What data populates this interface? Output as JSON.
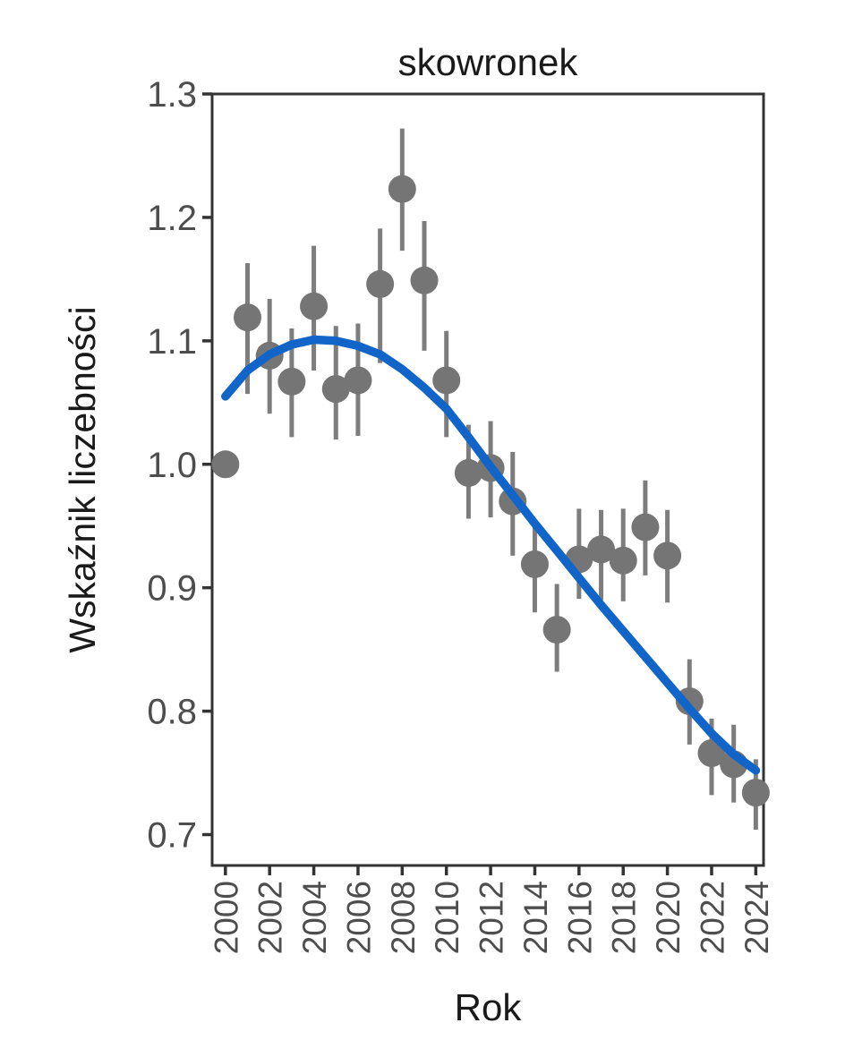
{
  "chart_data": {
    "type": "scatter",
    "title": "skowronek",
    "xlabel": "Rok",
    "ylabel": "Wskaźnik liczebności",
    "grid": false,
    "legend": "none",
    "xlim": [
      1999.4,
      2024.35
    ],
    "ylim": [
      0.675,
      1.3
    ],
    "x_ticks": [
      {
        "v": 2000,
        "label": "2000"
      },
      {
        "v": 2002,
        "label": "2002"
      },
      {
        "v": 2004,
        "label": "2004"
      },
      {
        "v": 2006,
        "label": "2006"
      },
      {
        "v": 2008,
        "label": "2008"
      },
      {
        "v": 2010,
        "label": "2010"
      },
      {
        "v": 2012,
        "label": "2012"
      },
      {
        "v": 2014,
        "label": "2014"
      },
      {
        "v": 2016,
        "label": "2016"
      },
      {
        "v": 2018,
        "label": "2018"
      },
      {
        "v": 2020,
        "label": "2020"
      },
      {
        "v": 2022,
        "label": "2022"
      },
      {
        "v": 2024,
        "label": "2024"
      }
    ],
    "y_ticks": [
      {
        "v": 0.7,
        "label": "0.7"
      },
      {
        "v": 0.8,
        "label": "0.8"
      },
      {
        "v": 0.9,
        "label": "0.9"
      },
      {
        "v": 1.0,
        "label": "1.0"
      },
      {
        "v": 1.1,
        "label": "1.1"
      },
      {
        "v": 1.2,
        "label": "1.2"
      },
      {
        "v": 1.3,
        "label": "1.3"
      }
    ],
    "series": [
      {
        "name": "index-points-with-ci",
        "points": [
          {
            "year": 2000,
            "value": 1.0,
            "lo": null,
            "hi": null
          },
          {
            "year": 2001,
            "value": 1.119,
            "lo": 1.057,
            "hi": 1.163
          },
          {
            "year": 2002,
            "value": 1.088,
            "lo": 1.041,
            "hi": 1.134
          },
          {
            "year": 2003,
            "value": 1.067,
            "lo": 1.022,
            "hi": 1.11
          },
          {
            "year": 2004,
            "value": 1.128,
            "lo": 1.076,
            "hi": 1.177
          },
          {
            "year": 2005,
            "value": 1.061,
            "lo": 1.02,
            "hi": 1.112
          },
          {
            "year": 2006,
            "value": 1.068,
            "lo": 1.023,
            "hi": 1.114
          },
          {
            "year": 2007,
            "value": 1.146,
            "lo": 1.082,
            "hi": 1.191
          },
          {
            "year": 2008,
            "value": 1.223,
            "lo": 1.173,
            "hi": 1.272
          },
          {
            "year": 2009,
            "value": 1.149,
            "lo": 1.092,
            "hi": 1.197
          },
          {
            "year": 2010,
            "value": 1.068,
            "lo": 1.022,
            "hi": 1.108
          },
          {
            "year": 2011,
            "value": 0.993,
            "lo": 0.956,
            "hi": 1.032
          },
          {
            "year": 2012,
            "value": 0.997,
            "lo": 0.957,
            "hi": 1.035
          },
          {
            "year": 2013,
            "value": 0.97,
            "lo": 0.926,
            "hi": 1.01
          },
          {
            "year": 2014,
            "value": 0.919,
            "lo": 0.88,
            "hi": 0.955
          },
          {
            "year": 2015,
            "value": 0.866,
            "lo": 0.832,
            "hi": 0.903
          },
          {
            "year": 2016,
            "value": 0.923,
            "lo": 0.891,
            "hi": 0.964
          },
          {
            "year": 2017,
            "value": 0.931,
            "lo": 0.89,
            "hi": 0.963
          },
          {
            "year": 2018,
            "value": 0.922,
            "lo": 0.889,
            "hi": 0.964
          },
          {
            "year": 2019,
            "value": 0.949,
            "lo": 0.91,
            "hi": 0.987
          },
          {
            "year": 2020,
            "value": 0.926,
            "lo": 0.888,
            "hi": 0.963
          },
          {
            "year": 2021,
            "value": 0.808,
            "lo": 0.773,
            "hi": 0.842
          },
          {
            "year": 2022,
            "value": 0.766,
            "lo": 0.732,
            "hi": 0.794
          },
          {
            "year": 2023,
            "value": 0.757,
            "lo": 0.726,
            "hi": 0.789
          },
          {
            "year": 2024,
            "value": 0.734,
            "lo": 0.704,
            "hi": 0.761
          }
        ]
      }
    ],
    "trend": {
      "name": "smoothed-trend-line",
      "years": [
        2000,
        2001,
        2002,
        2003,
        2004,
        2005,
        2006,
        2007,
        2008,
        2009,
        2010,
        2011,
        2012,
        2013,
        2014,
        2015,
        2016,
        2017,
        2018,
        2019,
        2020,
        2021,
        2022,
        2023,
        2024
      ],
      "values": [
        1.055,
        1.076,
        1.089,
        1.097,
        1.101,
        1.1,
        1.096,
        1.089,
        1.077,
        1.062,
        1.045,
        1.022,
        0.998,
        0.975,
        0.952,
        0.93,
        0.908,
        0.886,
        0.865,
        0.844,
        0.823,
        0.802,
        0.782,
        0.765,
        0.752
      ]
    },
    "colors": {
      "background": "#ffffff",
      "point": "#757575",
      "error_bar": "#7d7d7d",
      "trend": "#1164c8",
      "axis": "#333333",
      "tick_label": "#4d4d4d",
      "text": "#1a1a1a"
    },
    "marks": {
      "point_radius": 15.5,
      "error_bar_width": 5,
      "trend_width": 9.5,
      "axis_width": 3,
      "tick_length": 11
    }
  }
}
